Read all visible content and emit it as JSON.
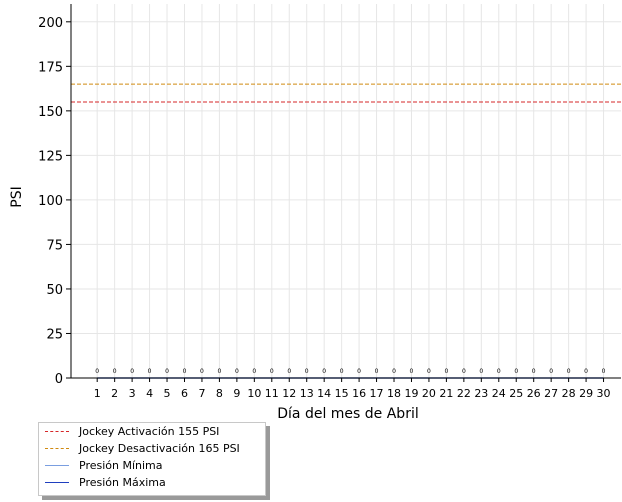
{
  "chart_data": {
    "type": "line",
    "xlabel": "Día del mes de  Abril",
    "ylabel": "PSI",
    "ylim": [
      0,
      210
    ],
    "yticks": [
      0,
      25,
      50,
      75,
      100,
      125,
      150,
      175,
      200
    ],
    "categories": [
      "1",
      "2",
      "3",
      "4",
      "5",
      "6",
      "7",
      "8",
      "9",
      "10",
      "11",
      "12",
      "13",
      "14",
      "15",
      "16",
      "17",
      "18",
      "19",
      "20",
      "21",
      "22",
      "23",
      "24",
      "25",
      "26",
      "27",
      "28",
      "29",
      "30"
    ],
    "xlim": [
      -0.5,
      31
    ],
    "grid": true,
    "reference_lines": [
      {
        "name": "Jockey Activación 155 PSI",
        "value": 155,
        "color": "#d62728",
        "style": "dashed"
      },
      {
        "name": "Jockey Desactivación 165 PSI",
        "value": 165,
        "color": "#d08a10",
        "style": "dashed"
      }
    ],
    "series": [
      {
        "name": "Presión Mínima",
        "color": "#7a9ee0",
        "values": [
          0,
          0,
          0,
          0,
          0,
          0,
          0,
          0,
          0,
          0,
          0,
          0,
          0,
          0,
          0,
          0,
          0,
          0,
          0,
          0,
          0,
          0,
          0,
          0,
          0,
          0,
          0,
          0,
          0,
          0
        ]
      },
      {
        "name": "Presión Máxima",
        "color": "#1f3fbf",
        "values": [
          0,
          0,
          0,
          0,
          0,
          0,
          0,
          0,
          0,
          0,
          0,
          0,
          0,
          0,
          0,
          0,
          0,
          0,
          0,
          0,
          0,
          0,
          0,
          0,
          0,
          0,
          0,
          0,
          0,
          0
        ]
      }
    ],
    "data_labels": [
      "0",
      "0",
      "0",
      "0",
      "0",
      "0",
      "0",
      "0",
      "0",
      "0",
      "0",
      "0",
      "0",
      "0",
      "0",
      "0",
      "0",
      "0",
      "0",
      "0",
      "0",
      "0",
      "0",
      "0",
      "0",
      "0",
      "0",
      "0",
      "0",
      "0"
    ],
    "legend_position": "below-left"
  }
}
